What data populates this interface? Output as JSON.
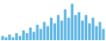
{
  "chart_data": {
    "type": "bar",
    "values": [
      3,
      2,
      4,
      2,
      5,
      3,
      7,
      5,
      9,
      6,
      11,
      8,
      13,
      10,
      16,
      12,
      18,
      14,
      22,
      16,
      26,
      18,
      20,
      14,
      18,
      12,
      16,
      10,
      13,
      8
    ],
    "color": "#5ab4e5",
    "ylim": [
      0,
      28.08
    ],
    "grid": false,
    "tick_labels": false
  }
}
